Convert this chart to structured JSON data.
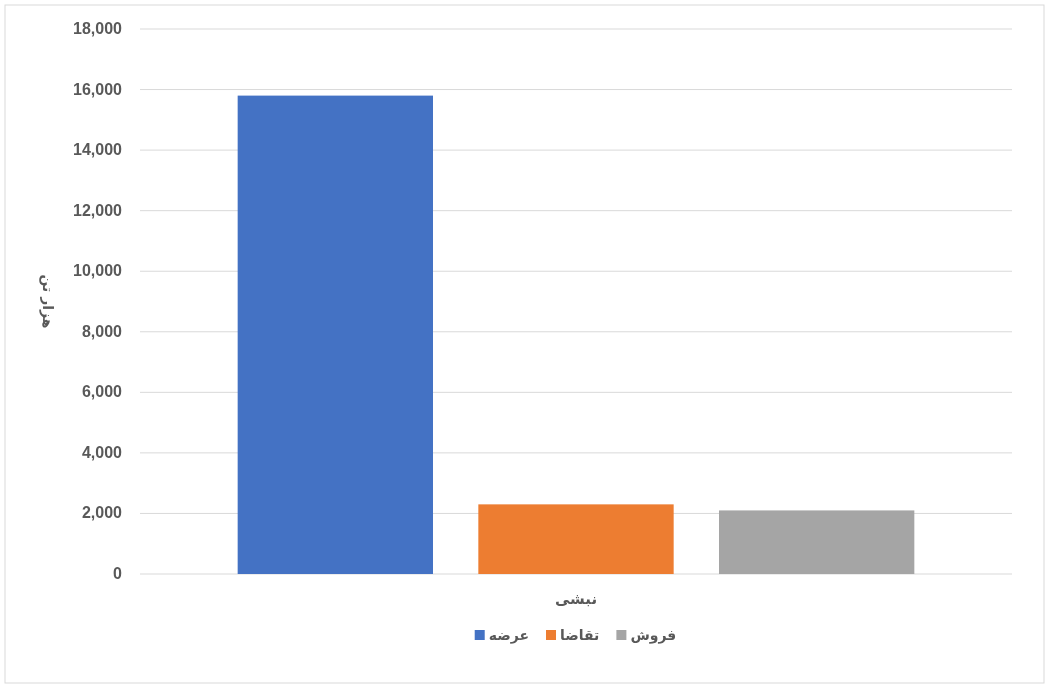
{
  "chart_data": {
    "type": "bar",
    "categories": [
      "نبشی"
    ],
    "series": [
      {
        "name": "عرضه",
        "color": "#4472c4",
        "values": [
          15800
        ]
      },
      {
        "name": "تقاضا",
        "color": "#ed7d31",
        "values": [
          2300
        ]
      },
      {
        "name": "فروش",
        "color": "#a5a5a5",
        "values": [
          2100
        ]
      }
    ],
    "ylabel": "هزار تن",
    "ylim": [
      0,
      18000
    ],
    "yticks": [
      {
        "value": 0,
        "label": "0"
      },
      {
        "value": 2000,
        "label": "2,000"
      },
      {
        "value": 4000,
        "label": "4,000"
      },
      {
        "value": 6000,
        "label": "6,000"
      },
      {
        "value": 8000,
        "label": "8,000"
      },
      {
        "value": 10000,
        "label": "10,000"
      },
      {
        "value": 12000,
        "label": "12,000"
      },
      {
        "value": 14000,
        "label": "14,000"
      },
      {
        "value": 16000,
        "label": "16,000"
      },
      {
        "value": 18000,
        "label": "18,000"
      }
    ],
    "grid": "y",
    "legend": "bottom"
  }
}
